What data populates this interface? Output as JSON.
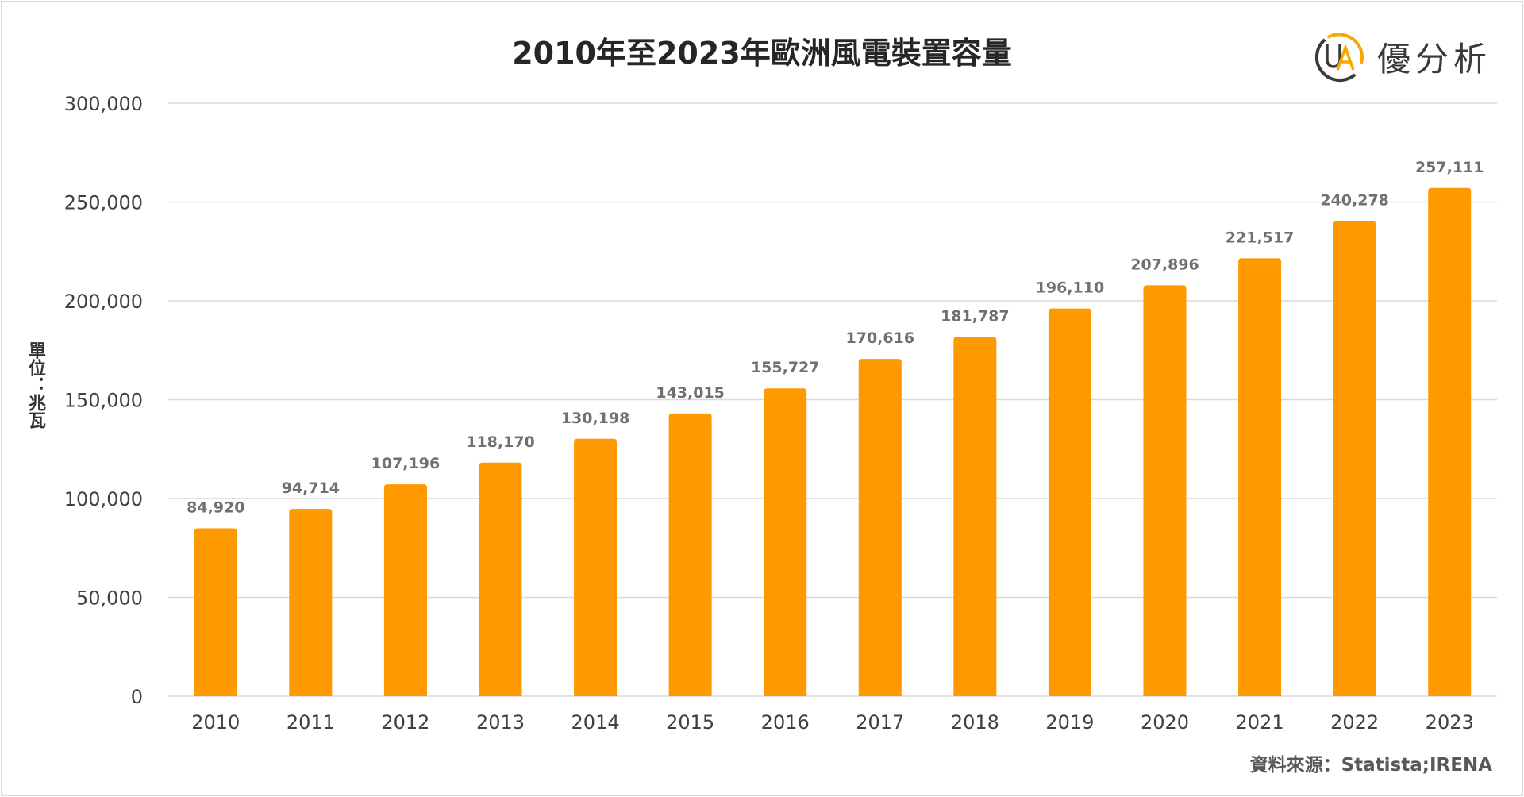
{
  "chart_data": {
    "type": "bar",
    "title": "2010年至2023年歐洲風電裝置容量",
    "ylabel": "單位：兆瓦",
    "xlabel": "",
    "categories": [
      "2010",
      "2011",
      "2012",
      "2013",
      "2014",
      "2015",
      "2016",
      "2017",
      "2018",
      "2019",
      "2020",
      "2021",
      "2022",
      "2023"
    ],
    "values": [
      84920,
      94714,
      107196,
      118170,
      130198,
      143015,
      155727,
      170616,
      181787,
      196110,
      207896,
      221517,
      240278,
      257111
    ],
    "data_labels": [
      "84,920",
      "94,714",
      "107,196",
      "118,170",
      "130,198",
      "143,015",
      "155,727",
      "170,616",
      "181,787",
      "196,110",
      "207,896",
      "221,517",
      "240,278",
      "257,111"
    ],
    "ylim": [
      0,
      300000
    ],
    "yticks": [
      0,
      50000,
      100000,
      150000,
      200000,
      250000,
      300000
    ],
    "ytick_labels": [
      "0",
      "50,000",
      "100,000",
      "150,000",
      "200,000",
      "250,000",
      "300,000"
    ],
    "grid": true,
    "bar_color": "#FF9900",
    "source": "資料來源：Statista;IRENA"
  },
  "logo": {
    "text": "優分析",
    "mark": "UA",
    "ring_dark": "#3a3a3a",
    "ring_accent": "#F5A800"
  }
}
